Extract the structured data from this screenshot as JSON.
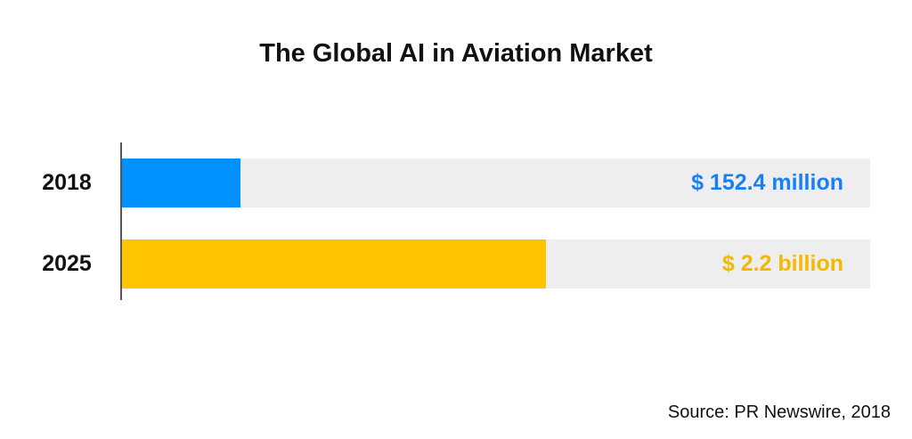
{
  "chart_data": {
    "type": "bar",
    "orientation": "horizontal",
    "title": "The Global AI in Aviation Market",
    "categories": [
      "2018",
      "2025"
    ],
    "bars": [
      {
        "category": "2018",
        "label": "$ 152.4 million",
        "value_usd_millions": 152.4,
        "fill_fraction": 0.158,
        "color": "#0091FF",
        "label_color": "#1A7FF5"
      },
      {
        "category": "2025",
        "label": "$ 2.2 billion",
        "value_usd_millions": 2200,
        "fill_fraction": 0.567,
        "color": "#FFC400",
        "label_color": "#F5B800"
      }
    ],
    "track_color": "#EEEEEE",
    "grid": false,
    "source": "Source: PR Newswire, 2018"
  }
}
